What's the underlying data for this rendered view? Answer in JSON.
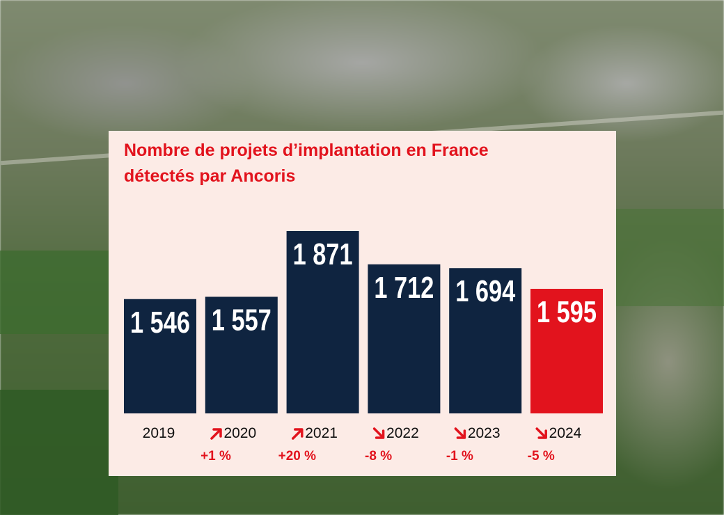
{
  "title_line1": "Nombre de projets d’implantation en France",
  "title_line2": "détectés par Ancoris",
  "chart_data": {
    "type": "bar",
    "title": "Nombre de projets d’implantation en France détectés par Ancoris",
    "categories": [
      "2019",
      "2020",
      "2021",
      "2022",
      "2023",
      "2024"
    ],
    "values": [
      1546,
      1557,
      1871,
      1712,
      1694,
      1595
    ],
    "value_labels": [
      "1 546",
      "1 557",
      "1 871",
      "1 712",
      "1 694",
      "1 595"
    ],
    "bar_colors": [
      "#0f2440",
      "#0f2440",
      "#0f2440",
      "#0f2440",
      "#0f2440",
      "#e2131d"
    ],
    "changes": [
      {
        "label": "+1 %",
        "direction": "up"
      },
      {
        "label": "+20 %",
        "direction": "up"
      },
      {
        "label": "-8 %",
        "direction": "down"
      },
      {
        "label": "-1 %",
        "direction": "down"
      },
      {
        "label": "-5 %",
        "direction": "down"
      }
    ],
    "xlabel": "",
    "ylabel": "",
    "grid": false
  },
  "colors": {
    "accent": "#e2131d",
    "navy": "#0f2440",
    "panel_bg": "#fcebe6"
  }
}
